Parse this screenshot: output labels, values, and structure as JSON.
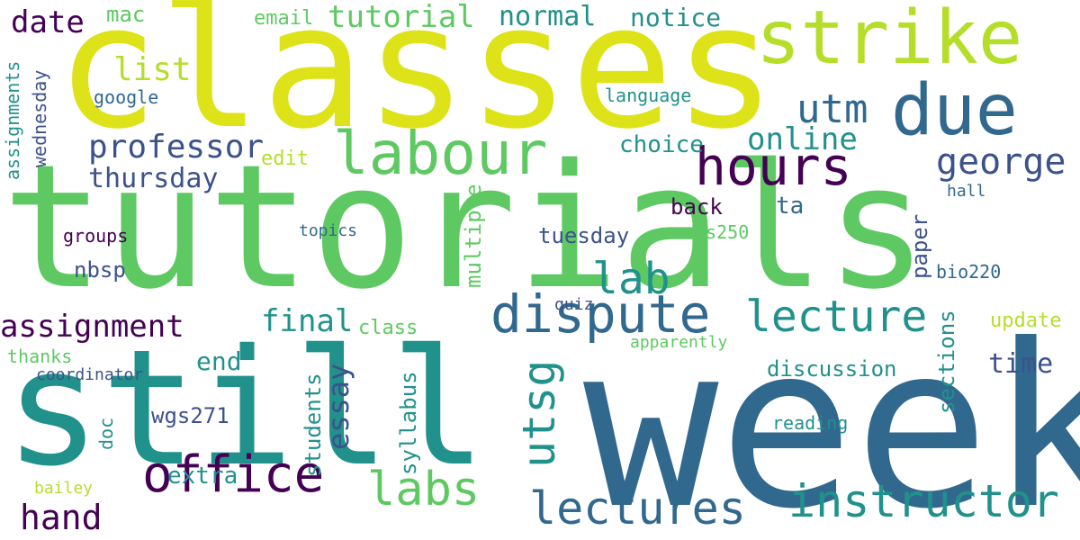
{
  "palette": {
    "purple_dark": "#440154",
    "indigo": "#3b528b",
    "blue": "#31688e",
    "teal": "#21918c",
    "green": "#5ec962",
    "lime": "#b5de2b",
    "yellow": "#dde318"
  },
  "words": [
    "classes",
    "tutorials",
    "week",
    "still",
    "strike",
    "due",
    "labour",
    "hours",
    "dispute",
    "lecture",
    "office",
    "labs",
    "lectures",
    "instructor",
    "utsg",
    "professor",
    "george",
    "utm",
    "assignment",
    "lab",
    "online",
    "list",
    "hand",
    "final",
    "essay",
    "thursday",
    "date",
    "tutorial",
    "normal",
    "notice",
    "email",
    "time",
    "end",
    "choice",
    "multiple",
    "syllabus",
    "students",
    "extra",
    "discussion",
    "sections",
    "paper",
    "update",
    "wgs271",
    "ta",
    "edit",
    "class",
    "google",
    "language",
    "mac",
    "back",
    "tuesday",
    "thanks",
    "assignments",
    "wednesday",
    "topics",
    "groups",
    "nbsp",
    "hall",
    "coordinator",
    "reading",
    "wgs250",
    "bio220",
    "apparently",
    "quiz",
    "doc",
    "bailey"
  ]
}
